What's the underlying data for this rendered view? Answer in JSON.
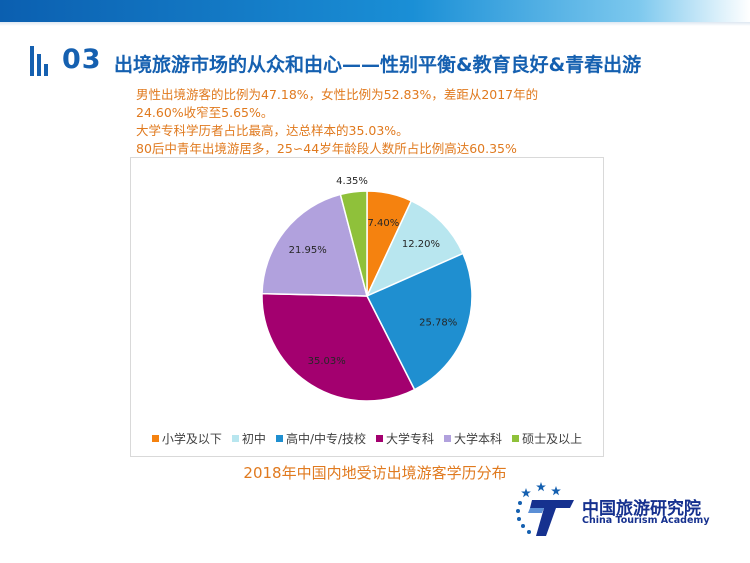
{
  "section": {
    "number": "03",
    "title": "出境旅游市场的从众和由心——性别平衡&教育良好&青春出游"
  },
  "summary": [
    "男性出境游客的比例为47.18%，女性比例为52.83%，差距从2017年的",
    "24.60%收窄至5.65%。",
    "大学专科学历者占比最高，达总样本的35.03%。",
    "80后中青年出境游居多，25∽44岁年龄段人数所占比例高达60.35%"
  ],
  "caption": "2018年中国内地受访出境游客学历分布",
  "logo": {
    "name_cn": "中国旅游研究院",
    "name_en": "China Tourism Academy",
    "mark_letter": "T"
  },
  "colors": {
    "brand_blue": "#1560b0",
    "accent_orange": "#e07a1f",
    "logo_navy": "#16318f"
  },
  "chart_data": {
    "type": "pie",
    "title": "",
    "categories": [
      "小学及以下",
      "初中",
      "高中/中专/技校",
      "大学专科",
      "大学本科",
      "硕士及以上"
    ],
    "values": [
      7.4,
      12.2,
      25.78,
      35.03,
      21.95,
      4.35
    ],
    "labels": [
      "7.40%",
      "12.20%",
      "25.78%",
      "35.03%",
      "21.95%",
      "4.35%"
    ],
    "colors": [
      "#f5820f",
      "#b8e6ef",
      "#1f8fd0",
      "#a3006f",
      "#b1a1dd",
      "#8fc13a"
    ],
    "label_colors": [
      "#262626",
      "#262626",
      "#262626",
      "#262626",
      "#262626",
      "#262626"
    ],
    "legend_position": "bottom"
  }
}
